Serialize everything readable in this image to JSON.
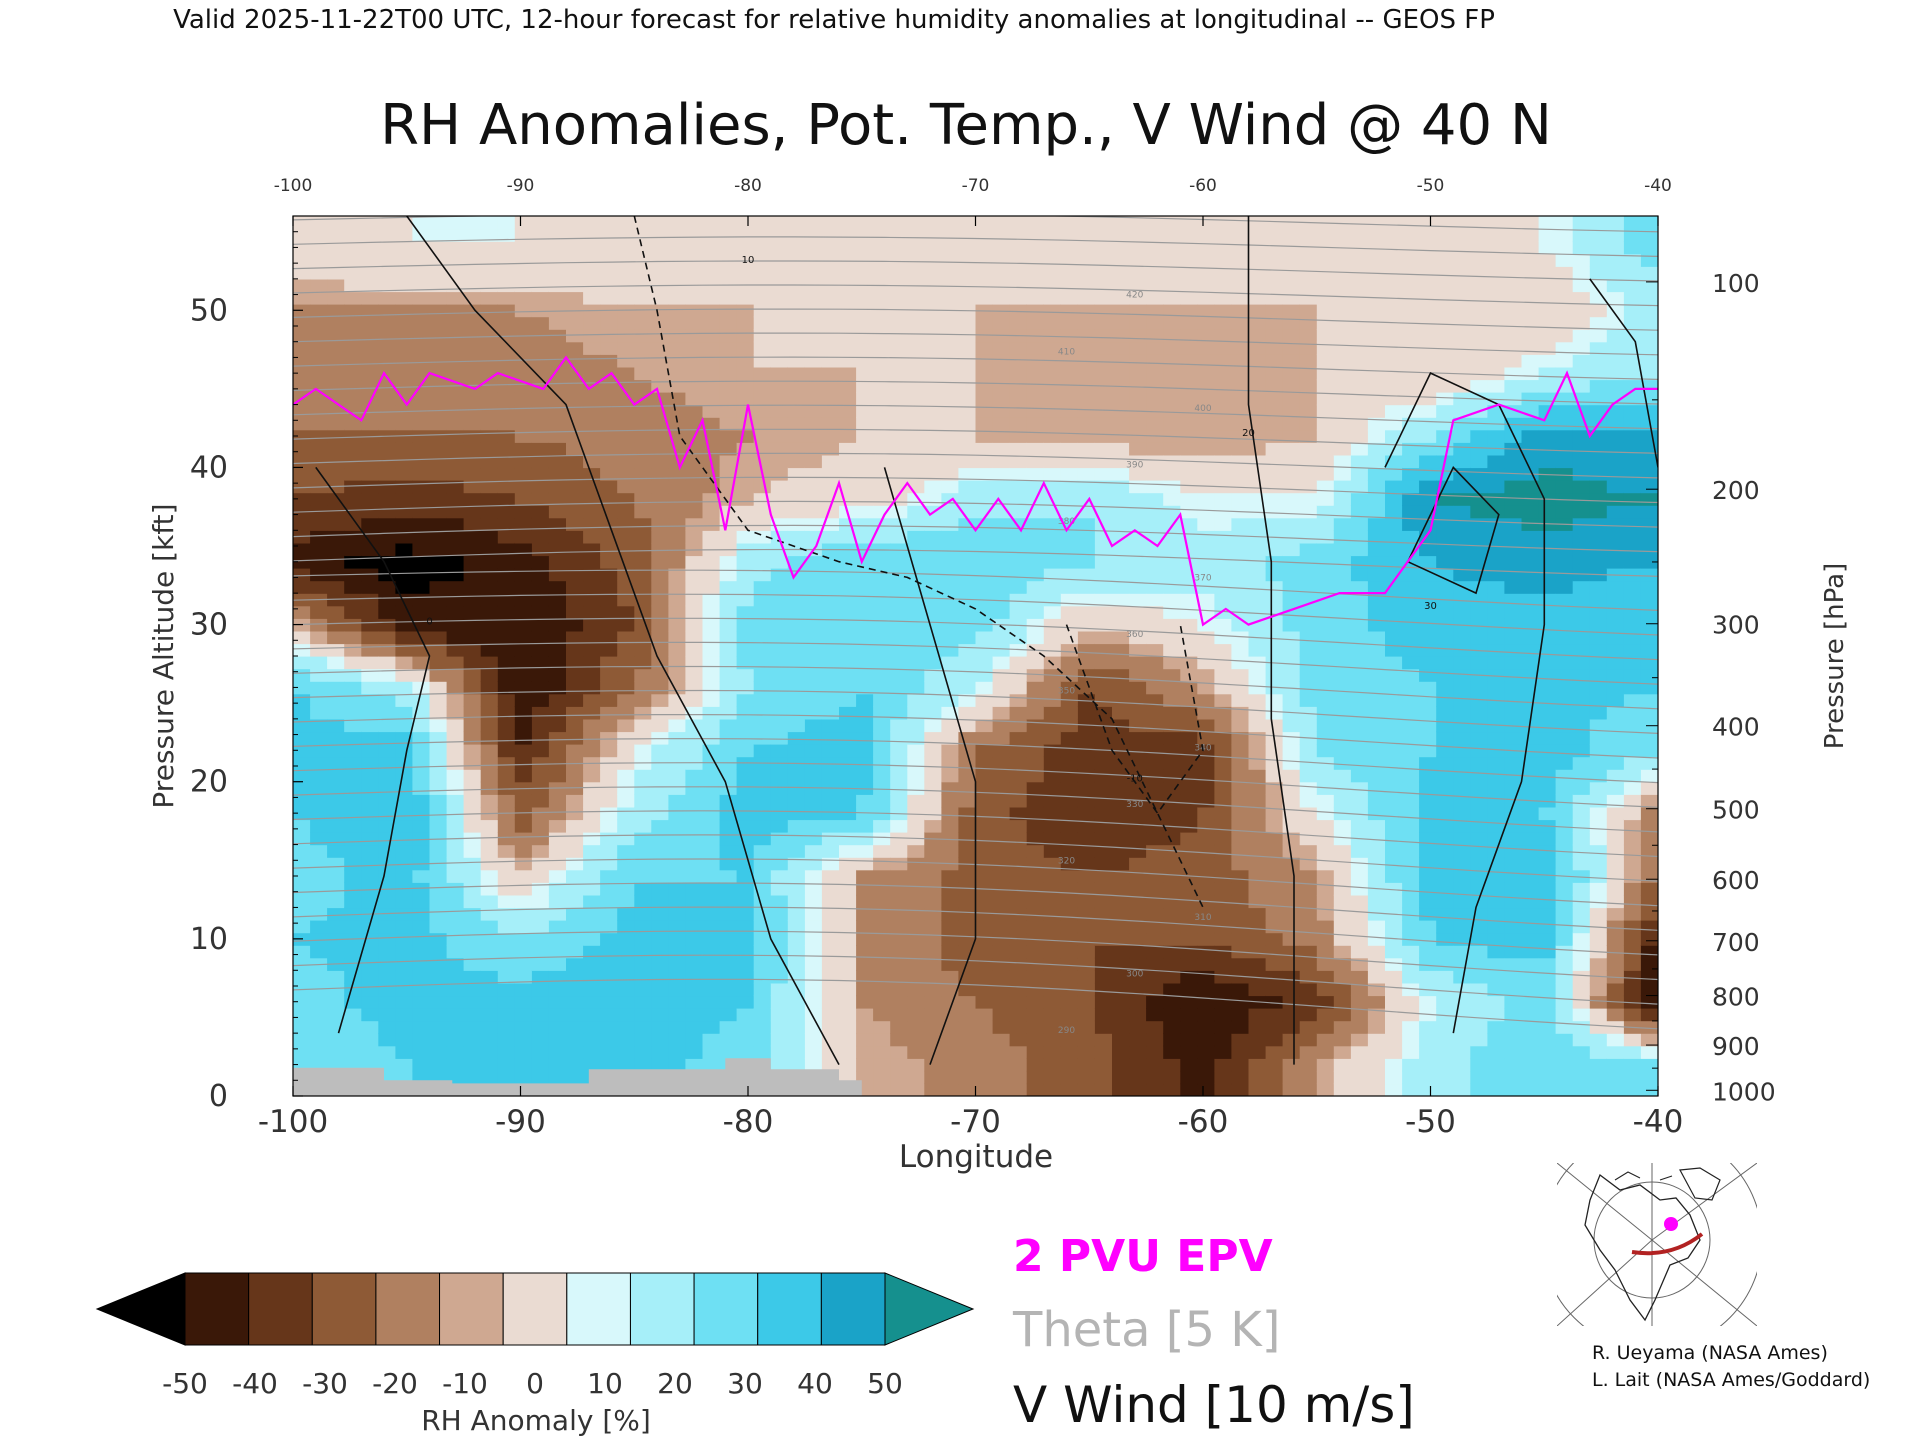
{
  "header": {
    "valid_line": "Valid 2025-11-22T00 UTC, 12-hour forecast for relative humidity anomalies at longitudinal -- GEOS FP"
  },
  "chart_data": {
    "type": "heatmap",
    "title": "RH Anomalies, Pot. Temp., V Wind @ 40 N",
    "xlabel": "Longitude",
    "ylabel_left": "Pressure Altitude [kft]",
    "ylabel_right": "Pressure [hPa]",
    "xlim": [
      -100,
      -40
    ],
    "ylim": [
      0,
      56
    ],
    "x_ticks": [
      "-100",
      "-90",
      "-80",
      "-70",
      "-60",
      "-50",
      "-40"
    ],
    "y_ticks_left": [
      "0",
      "10",
      "20",
      "30",
      "40",
      "50"
    ],
    "y_ticks_right": [
      {
        "hpa": 100,
        "label": "100"
      },
      {
        "hpa": 200,
        "label": "200"
      },
      {
        "hpa": 300,
        "label": "300"
      },
      {
        "hpa": 400,
        "label": "400"
      },
      {
        "hpa": 500,
        "label": "500"
      },
      {
        "hpa": 600,
        "label": "600"
      },
      {
        "hpa": 700,
        "label": "700"
      },
      {
        "hpa": 800,
        "label": "800"
      },
      {
        "hpa": 900,
        "label": "900"
      },
      {
        "hpa": 1000,
        "label": "1000"
      }
    ],
    "colorbar": {
      "label": "RH Anomaly [%]",
      "tick_labels": [
        "-50",
        "-40",
        "-30",
        "-20",
        "-10",
        "0",
        "10",
        "20",
        "30",
        "40",
        "50"
      ],
      "colors": [
        "#3a1808",
        "#66361a",
        "#8e5a36",
        "#b08060",
        "#cfa891",
        "#eadbd2",
        "#d8f8fb",
        "#a6eff9",
        "#6ee0f3",
        "#3cc9e8",
        "#1aa3c8"
      ],
      "under_color": "#000000",
      "over_color": "#15908e"
    },
    "rh_anomaly_grid": {
      "lon": [
        -100,
        -95,
        -90,
        -85,
        -80,
        -75,
        -70,
        -65,
        -60,
        -55,
        -50,
        -45,
        -40
      ],
      "kft": [
        2,
        6,
        10,
        14,
        18,
        22,
        26,
        30,
        34,
        38,
        42,
        46,
        50,
        54
      ],
      "values": [
        [
          20,
          30,
          40,
          35,
          25,
          -5,
          -15,
          -25,
          -45,
          -10,
          15,
          30,
          20
        ],
        [
          25,
          35,
          35,
          35,
          30,
          -10,
          -20,
          -30,
          -50,
          -35,
          10,
          25,
          -50
        ],
        [
          30,
          35,
          20,
          35,
          35,
          -10,
          -25,
          -30,
          -30,
          -15,
          30,
          35,
          -45
        ],
        [
          25,
          35,
          -5,
          30,
          30,
          -10,
          -25,
          -30,
          -25,
          -10,
          35,
          40,
          -20
        ],
        [
          30,
          40,
          -25,
          15,
          35,
          30,
          -25,
          -40,
          -30,
          5,
          35,
          30,
          -15
        ],
        [
          35,
          35,
          -40,
          5,
          30,
          35,
          -20,
          -35,
          -35,
          20,
          30,
          35,
          20
        ],
        [
          30,
          15,
          -50,
          -20,
          20,
          30,
          10,
          -30,
          -10,
          25,
          30,
          35,
          30
        ],
        [
          -5,
          -45,
          -50,
          -30,
          25,
          30,
          25,
          -5,
          5,
          25,
          35,
          35,
          30
        ],
        [
          -45,
          -55,
          -45,
          -25,
          15,
          30,
          30,
          20,
          15,
          25,
          40,
          45,
          40
        ],
        [
          -30,
          -35,
          -30,
          -20,
          -5,
          0,
          15,
          20,
          5,
          5,
          50,
          55,
          50
        ],
        [
          -20,
          -20,
          -20,
          -15,
          -10,
          -5,
          -5,
          -10,
          -10,
          -5,
          20,
          45,
          40
        ],
        [
          -15,
          -15,
          -15,
          -10,
          -5,
          -5,
          -5,
          -10,
          -10,
          -5,
          -5,
          10,
          20
        ],
        [
          -10,
          -10,
          -10,
          -5,
          -5,
          -3,
          -5,
          -5,
          -5,
          -5,
          -5,
          -5,
          15
        ],
        [
          0,
          5,
          5,
          3,
          5,
          3,
          0,
          -3,
          -3,
          0,
          3,
          5,
          25
        ]
      ]
    },
    "terrain": [
      [
        -100,
        1.8
      ],
      [
        -96,
        1.8
      ],
      [
        -96,
        1
      ],
      [
        -93,
        1
      ],
      [
        -93,
        0.8
      ],
      [
        -87,
        0.8
      ],
      [
        -87,
        1.7
      ],
      [
        -81,
        1.7
      ],
      [
        -81,
        2.4
      ],
      [
        -79,
        2.4
      ],
      [
        -79,
        1.7
      ],
      [
        -76,
        1.7
      ],
      [
        -76,
        1
      ],
      [
        -75,
        1
      ],
      [
        -75,
        0
      ]
    ],
    "epv_2pvu": {
      "name": "2 PVU EPV",
      "color": "#ff00ff",
      "points": [
        [
          -100,
          44
        ],
        [
          -99,
          45
        ],
        [
          -98,
          44
        ],
        [
          -97,
          43
        ],
        [
          -96,
          46
        ],
        [
          -95,
          44
        ],
        [
          -94,
          46
        ],
        [
          -92,
          45
        ],
        [
          -91,
          46
        ],
        [
          -89,
          45
        ],
        [
          -88,
          47
        ],
        [
          -87,
          45
        ],
        [
          -86,
          46
        ],
        [
          -85,
          44
        ],
        [
          -84,
          45
        ],
        [
          -83,
          40
        ],
        [
          -82,
          43
        ],
        [
          -81,
          36
        ],
        [
          -80,
          44
        ],
        [
          -79,
          37
        ],
        [
          -78,
          33
        ],
        [
          -77,
          35
        ],
        [
          -76,
          39
        ],
        [
          -75,
          34
        ],
        [
          -74,
          37
        ],
        [
          -73,
          39
        ],
        [
          -72,
          37
        ],
        [
          -71,
          38
        ],
        [
          -70,
          36
        ],
        [
          -69,
          38
        ],
        [
          -68,
          36
        ],
        [
          -67,
          39
        ],
        [
          -66,
          36
        ],
        [
          -65,
          38
        ],
        [
          -64,
          35
        ],
        [
          -63,
          36
        ],
        [
          -62,
          35
        ],
        [
          -61,
          37
        ],
        [
          -60,
          30
        ],
        [
          -59,
          31
        ],
        [
          -58,
          30
        ],
        [
          -56,
          31
        ],
        [
          -54,
          32
        ],
        [
          -52,
          32
        ],
        [
          -50,
          36
        ],
        [
          -49,
          43
        ],
        [
          -47,
          44
        ],
        [
          -45,
          43
        ],
        [
          -44,
          46
        ],
        [
          -43,
          42
        ],
        [
          -42,
          44
        ],
        [
          -41,
          45
        ],
        [
          -40,
          45
        ]
      ]
    },
    "legend": {
      "epv": "2 PVU EPV",
      "theta": "Theta [5 K]",
      "vwind": "V Wind [10 m/s]"
    },
    "theta_contour_labels": [
      "290",
      "300",
      "310",
      "320",
      "330",
      "340",
      "350",
      "360",
      "370",
      "380",
      "390",
      "400",
      "410",
      "420"
    ],
    "vwind_contour_labels": [
      "0",
      "10",
      "-10",
      "20",
      "30"
    ],
    "inset_map": {
      "marker_color": "#ff00ff",
      "section_color": "#b22222"
    }
  },
  "credits": {
    "line1": "R. Ueyama (NASA Ames)",
    "line2": "L. Lait (NASA Ames/Goddard)"
  }
}
